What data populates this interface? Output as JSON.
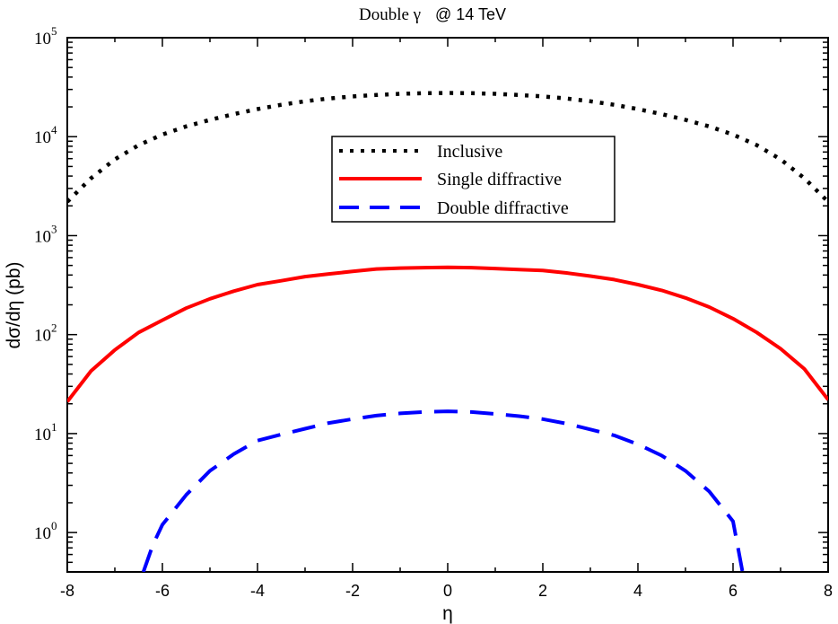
{
  "chart_data": {
    "type": "line",
    "title_parts": [
      "Double γ",
      "@ 14 TeV"
    ],
    "xlabel": "η",
    "ylabel": "dσ/dη (pb)",
    "xlim": [
      -8,
      8
    ],
    "ylim": [
      0.4,
      100000
    ],
    "yscale": "log",
    "grid": false,
    "legend_position": "top-center",
    "x_ticks": [
      "-8",
      "-6",
      "-4",
      "-2",
      "0",
      "2",
      "4",
      "6",
      "8"
    ],
    "y_ticks": [
      {
        "base": "10",
        "exp": "0"
      },
      {
        "base": "10",
        "exp": "1"
      },
      {
        "base": "10",
        "exp": "2"
      },
      {
        "base": "10",
        "exp": "3"
      },
      {
        "base": "10",
        "exp": "4"
      },
      {
        "base": "10",
        "exp": "5"
      }
    ],
    "series": [
      {
        "name": "Inclusive",
        "color": "#000000",
        "style": "dotted",
        "x": [
          -8,
          -7.5,
          -7,
          -6.5,
          -6,
          -5.5,
          -5,
          -4.5,
          -4,
          -3.5,
          -3,
          -2.5,
          -2,
          -1.5,
          -1,
          -0.5,
          0,
          0.5,
          1,
          1.5,
          2,
          2.5,
          3,
          3.5,
          4,
          4.5,
          5,
          5.5,
          6,
          6.5,
          7,
          7.5,
          8
        ],
        "y": [
          2200,
          3800,
          5900,
          8200,
          10500,
          12700,
          14800,
          16900,
          19000,
          21000,
          22800,
          24300,
          25500,
          26400,
          27100,
          27500,
          27700,
          27500,
          27100,
          26400,
          25500,
          24300,
          22800,
          21000,
          19000,
          16900,
          14800,
          12700,
          10500,
          8200,
          5900,
          3800,
          2200
        ]
      },
      {
        "name": "Single diffractive",
        "color": "#ff0000",
        "style": "solid",
        "x": [
          -8,
          -7.5,
          -7,
          -6.5,
          -6,
          -5.5,
          -5,
          -4.5,
          -4,
          -3.5,
          -3,
          -2.5,
          -2,
          -1.5,
          -1,
          -0.5,
          0,
          0.5,
          1,
          1.5,
          2,
          2.5,
          3,
          3.5,
          4,
          4.5,
          5,
          5.5,
          6,
          6.5,
          7,
          7.5,
          8
        ],
        "y": [
          21,
          43,
          70,
          105,
          140,
          185,
          230,
          275,
          320,
          350,
          385,
          410,
          435,
          460,
          470,
          475,
          478,
          475,
          465,
          455,
          445,
          420,
          390,
          360,
          320,
          280,
          235,
          190,
          145,
          105,
          72,
          45,
          22
        ]
      },
      {
        "name": "Double diffractive",
        "color": "#0000ff",
        "style": "dashed",
        "x": [
          -6.4,
          -6.2,
          -6,
          -5.5,
          -5,
          -4.5,
          -4,
          -3.5,
          -3,
          -2.5,
          -2,
          -1.5,
          -1,
          -0.5,
          0,
          0.5,
          1,
          1.5,
          2,
          2.5,
          3,
          3.5,
          4,
          4.5,
          5,
          5.5,
          6,
          6.2
        ],
        "y": [
          0.4,
          0.75,
          1.2,
          2.4,
          4.2,
          6.2,
          8.5,
          9.8,
          11.2,
          12.8,
          14.0,
          15.2,
          16.0,
          16.5,
          16.8,
          16.5,
          15.8,
          15.0,
          14.0,
          12.6,
          11.0,
          9.6,
          7.8,
          6.0,
          4.2,
          2.6,
          1.3,
          0.4
        ]
      }
    ]
  }
}
